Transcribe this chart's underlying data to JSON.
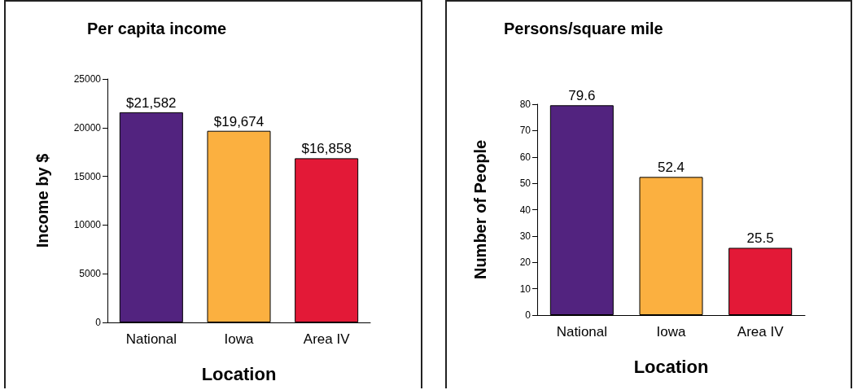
{
  "chart_data": [
    {
      "type": "bar",
      "title": "Per capita income",
      "xlabel": "Location",
      "ylabel": "Income by $",
      "categories": [
        "National",
        "Iowa",
        "Area IV"
      ],
      "values": [
        21582,
        19674,
        16858
      ],
      "colors": [
        "#52237f",
        "#fbb040",
        "#e31937"
      ],
      "value_labels": [
        "$21,582",
        "$19,674",
        "$16,858"
      ],
      "ylim": [
        0,
        25000
      ],
      "yticks": [
        0,
        5000,
        10000,
        15000,
        20000,
        25000
      ],
      "grid": false
    },
    {
      "type": "bar",
      "title": "Persons/square mile",
      "xlabel": "Location",
      "ylabel": "Number of People",
      "categories": [
        "National",
        "Iowa",
        "Area IV"
      ],
      "values": [
        79.6,
        52.4,
        25.5
      ],
      "colors": [
        "#52237f",
        "#fbb040",
        "#e31937"
      ],
      "data_labels": true,
      "ylim": [
        0,
        80
      ],
      "yticks": [
        0,
        10,
        20,
        30,
        40,
        50,
        60,
        70,
        80
      ],
      "grid": false
    }
  ]
}
